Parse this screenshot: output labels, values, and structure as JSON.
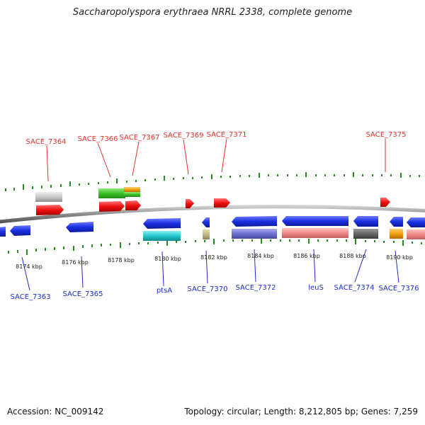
{
  "title": "Saccharopolyspora erythraea NRRL 2338, complete genome",
  "footer": {
    "accession": "Accession: NC_009142",
    "topology": "Topology: circular; Length: 8,212,805 bp; Genes: 7,259"
  },
  "colors": {
    "forward_label": "#e8302a",
    "reverse_label": "#1a2fd0",
    "tick": "#2a8a22",
    "backbone": "#8a8a8a"
  },
  "scale_labels": [
    "8174 kbp",
    "8176 kbp",
    "8178 kbp",
    "8180 kbp",
    "8182 kbp",
    "8184 kbp",
    "8186 kbp",
    "8188 kbp",
    "8190 kbp"
  ],
  "top_labels": [
    "SACE_7364",
    "SACE_7366",
    "SACE_7367",
    "SACE_7369",
    "SACE_7371",
    "SACE_7375"
  ],
  "bottom_labels": [
    "SACE_7363",
    "SACE_7365",
    "ptsA",
    "SACE_7370",
    "SACE_7372",
    "leuS",
    "SACE_7374",
    "SACE_7376"
  ]
}
